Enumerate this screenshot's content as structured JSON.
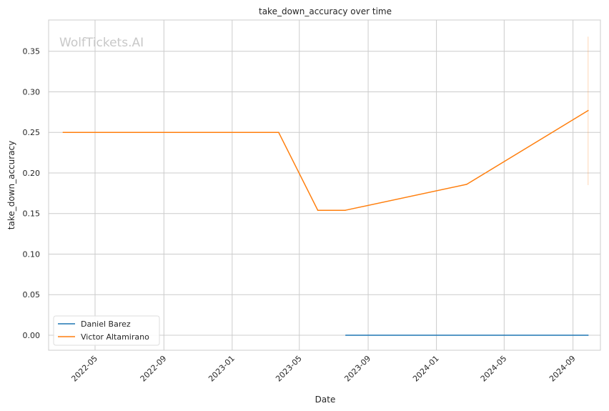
{
  "chart_data": {
    "type": "line",
    "title": "take_down_accuracy over time",
    "xlabel": "Date",
    "ylabel": "take_down_accuracy",
    "watermark": "WolfTickets.AI",
    "grid": true,
    "legend_position": "bottom-left",
    "xlim": [
      "2022-02-07",
      "2024-10-20"
    ],
    "ylim": [
      -0.0185,
      0.3885
    ],
    "x_ticks": [
      "2022-05",
      "2022-09",
      "2023-01",
      "2023-05",
      "2023-09",
      "2024-01",
      "2024-05",
      "2024-09"
    ],
    "y_ticks": [
      "0.00",
      "0.05",
      "0.10",
      "0.15",
      "0.20",
      "0.25",
      "0.30",
      "0.35"
    ],
    "series": [
      {
        "name": "Daniel Barez",
        "color": "#1f77b4",
        "points": [
          {
            "x": "2023-07-23",
            "y": 0.0
          },
          {
            "x": "2024-09-28",
            "y": 0.0
          }
        ]
      },
      {
        "name": "Victor Altamirano",
        "color": "#ff7f0e",
        "points": [
          {
            "x": "2022-03-05",
            "y": 0.25
          },
          {
            "x": "2023-03-25",
            "y": 0.25
          },
          {
            "x": "2023-06-03",
            "y": 0.154
          },
          {
            "x": "2023-07-22",
            "y": 0.154
          },
          {
            "x": "2024-02-24",
            "y": 0.186
          },
          {
            "x": "2024-09-28",
            "y": 0.277
          }
        ],
        "error_band": {
          "x": "2024-09-28",
          "low": 0.185,
          "high": 0.368
        }
      }
    ]
  }
}
